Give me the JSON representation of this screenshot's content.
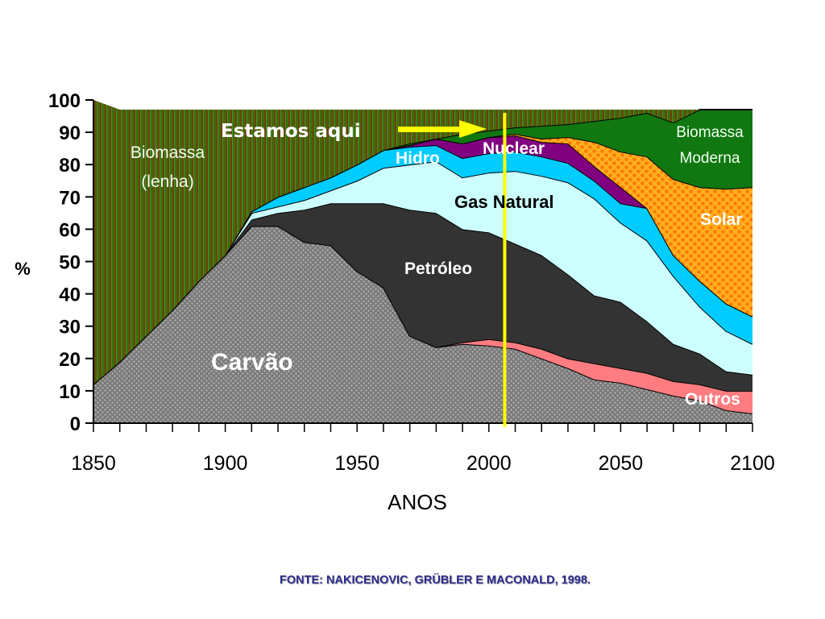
{
  "chart_data": {
    "type": "area",
    "stacked": true,
    "xlabel": "ANOS",
    "ylabel": "%",
    "xlim": [
      1850,
      2100
    ],
    "ylim": [
      0,
      100
    ],
    "x_ticks": [
      "1850",
      "1900",
      "1950",
      "2000",
      "2050",
      "2100"
    ],
    "y_ticks": [
      "0",
      "10",
      "20",
      "30",
      "40",
      "50",
      "60",
      "70",
      "80",
      "90",
      "100"
    ],
    "x": [
      1850,
      1860,
      1870,
      1880,
      1890,
      1900,
      1910,
      1920,
      1930,
      1940,
      1950,
      1960,
      1970,
      1980,
      1990,
      2000,
      2010,
      2020,
      2030,
      2040,
      2050,
      2060,
      2070,
      2080,
      2090,
      2100
    ],
    "cumulative_series": [
      {
        "name": "Carvão",
        "label": "Carvão",
        "color": "#8c8c8c",
        "top": [
          12,
          19,
          27,
          35,
          44,
          52,
          61,
          61,
          56,
          55,
          47,
          42,
          27,
          23.5,
          24.5,
          24,
          23,
          20,
          17,
          13.5,
          12.5,
          10.5,
          8.5,
          7,
          4,
          3
        ]
      },
      {
        "name": "Outros",
        "label": "Outros",
        "color": "#ff7c80",
        "top": [
          12,
          19,
          27,
          35,
          44,
          52,
          61,
          61,
          56,
          55,
          47,
          42,
          27,
          23.5,
          25,
          26,
          25,
          23,
          20,
          18.5,
          17,
          15.5,
          13,
          12,
          10,
          10
        ]
      },
      {
        "name": "Petróleo",
        "label": "Petróleo",
        "color": "#333333",
        "top": [
          12,
          19,
          27,
          35,
          44,
          52,
          63,
          65,
          66,
          68,
          68,
          68,
          66,
          65,
          60,
          59,
          55.5,
          52,
          46,
          39.5,
          37.5,
          31.5,
          24.5,
          21.5,
          16,
          15
        ]
      },
      {
        "name": "Gas Natural",
        "label": "Gas Natural",
        "color": "#ccffff",
        "top": [
          12,
          19,
          27,
          35,
          44,
          52,
          65,
          67,
          69,
          72,
          75,
          79,
          80,
          81,
          76,
          77.5,
          78,
          76.5,
          74.5,
          69.5,
          62,
          56.5,
          45.5,
          36,
          28.5,
          24.5
        ]
      },
      {
        "name": "Hidro",
        "label": "Hidro",
        "color": "#00ccff",
        "top": [
          12,
          19,
          27,
          35,
          44,
          52,
          65.5,
          70,
          73,
          76,
          80,
          84.5,
          85.5,
          86,
          82,
          83.5,
          84,
          82.5,
          80.5,
          75,
          68,
          66.5,
          52,
          44,
          37,
          33
        ]
      },
      {
        "name": "Nuclear",
        "label": "Nuclear",
        "color": "#800080",
        "top": [
          12,
          19,
          27,
          35,
          44,
          52,
          65.5,
          70,
          73,
          76,
          80,
          84.5,
          86,
          88,
          86.5,
          88.5,
          89,
          87,
          86.5,
          79.5,
          73,
          66.5,
          52,
          44,
          37,
          33
        ]
      },
      {
        "name": "Solar",
        "label": "Solar",
        "color": "#ff9900",
        "top": [
          12,
          19,
          27,
          35,
          44,
          52,
          65.5,
          70,
          73,
          76,
          80,
          84.5,
          86,
          88,
          86.5,
          88.5,
          89.5,
          88,
          88.5,
          87,
          84,
          82.5,
          75.5,
          73,
          72.5,
          73
        ]
      },
      {
        "name": "Biomassa Moderna",
        "label": "Biomassa Moderna",
        "color": "#117711",
        "top": [
          12,
          19,
          27,
          35,
          44,
          52,
          65.5,
          70,
          73,
          76,
          80,
          84.5,
          86.5,
          88,
          89.5,
          90.5,
          91.5,
          92,
          92.5,
          93.5,
          94.5,
          96,
          93,
          97,
          97,
          97
        ]
      },
      {
        "name": "Biomassa (lenha)",
        "label": "Biomassa (lenha)",
        "color": "#1a7a0a",
        "top": [
          100,
          97,
          97,
          97,
          97,
          97,
          97,
          97,
          97,
          97,
          97,
          97,
          97,
          97,
          97,
          97,
          97,
          97,
          97,
          97,
          97,
          97,
          97,
          97,
          97,
          97
        ]
      }
    ],
    "annotations": [
      {
        "text": "Estamos aqui",
        "x": 2006
      },
      {
        "text": "Biomassa",
        "text2": "(lenha)"
      },
      {
        "text": "Biomassa",
        "text2": "Moderna"
      }
    ],
    "marker_year": 2006,
    "colors": {
      "marker_line": "#ffff00",
      "axis": "#000000",
      "lenha_top_right": "#7a2a0a"
    }
  },
  "labels": {
    "estamos": "Estamos aqui",
    "lenha1": "Biomassa",
    "lenha2": "(lenha)",
    "moderna1": "Biomassa",
    "moderna2": "Moderna",
    "hidro": "Hidro",
    "nuclear": "Nuclear",
    "gas": "Gas Natural",
    "petroleo": "Petróleo",
    "carvao": "Carvão",
    "solar": "Solar",
    "outros": "Outros"
  },
  "source": "FONTE: NAKICENOVIC, GRÜBLER E MACONALD, 1998."
}
